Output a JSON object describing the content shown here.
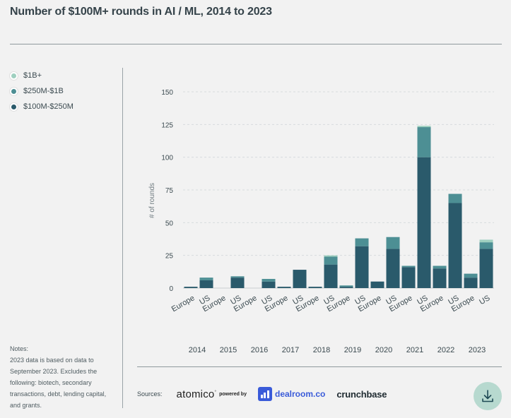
{
  "title": "Number of $100M+ rounds in AI / ML, 2014 to 2023",
  "legend": [
    {
      "label": "$1B+",
      "color": "#9fd0c0"
    },
    {
      "label": "$250M-$1B",
      "color": "#4d8f94"
    },
    {
      "label": "$100M-$250M",
      "color": "#2a5a6b"
    }
  ],
  "notes": {
    "heading": "Notes:",
    "text": "2023 data is based on data to September 2023. Excludes the following: biotech, secondary transactions, debt, lending capital, and grants."
  },
  "sources": {
    "label": "Sources:",
    "atomico": "atomico",
    "powered_by": "powered by",
    "dealroom": "dealroom.co",
    "crunchbase": "crunchbase"
  },
  "download": {
    "icon": "download-icon"
  },
  "chart_data": {
    "type": "bar",
    "stacked": true,
    "ylabel": "# of rounds",
    "ylim": [
      0,
      150
    ],
    "yticks": [
      0,
      25,
      50,
      75,
      100,
      125,
      150
    ],
    "grid": true,
    "years": [
      "2014",
      "2015",
      "2016",
      "2017",
      "2018",
      "2019",
      "2020",
      "2021",
      "2022",
      "2023"
    ],
    "regions": [
      "Europe",
      "US"
    ],
    "categories": [
      "Europe",
      "US",
      "Europe",
      "US",
      "Europe",
      "US",
      "Europe",
      "US",
      "Europe",
      "US",
      "Europe",
      "US",
      "Europe",
      "US",
      "Europe",
      "US",
      "Europe",
      "US",
      "Europe",
      "US"
    ],
    "series": [
      {
        "name": "$100M-$250M",
        "color": "#2a5a6b",
        "values": [
          1,
          6,
          0,
          8,
          0,
          5,
          1,
          14,
          1,
          18,
          1,
          32,
          5,
          30,
          16,
          100,
          15,
          65,
          8,
          30
        ]
      },
      {
        "name": "$250M-$1B",
        "color": "#4d8f94",
        "values": [
          0,
          2,
          0,
          1,
          0,
          2,
          0,
          0,
          0,
          6,
          1,
          6,
          0,
          9,
          1,
          23,
          2,
          7,
          3,
          5
        ]
      },
      {
        "name": "$1B+",
        "color": "#9fd0c0",
        "values": [
          0,
          0,
          0,
          0,
          0,
          0,
          0,
          0,
          0,
          1,
          0,
          0,
          0,
          0,
          0,
          1,
          0,
          0,
          0,
          2
        ]
      }
    ]
  }
}
